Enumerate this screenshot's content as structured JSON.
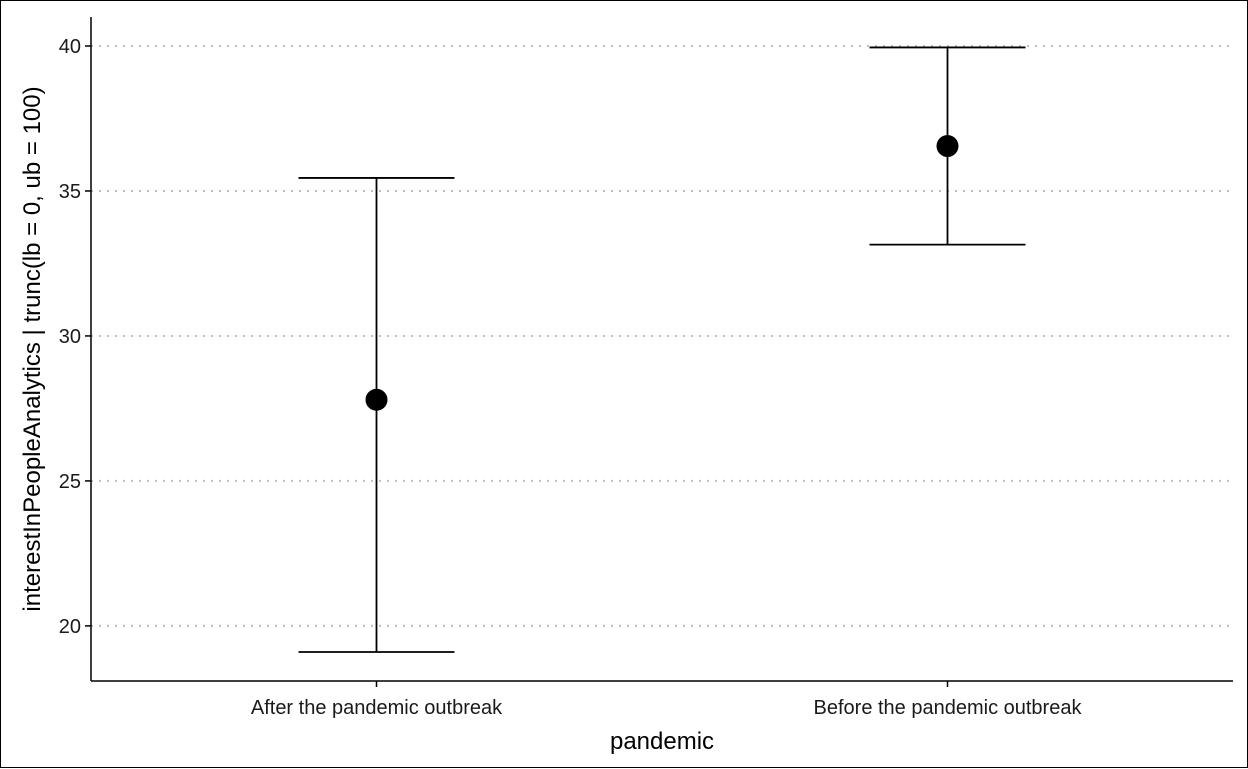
{
  "chart_data": {
    "type": "scatter",
    "subtype": "point with error bars",
    "title": "",
    "xlabel": "pandemic",
    "ylabel": "interestInPeopleAnalytics | trunc(lb = 0, ub = 100)",
    "categories": [
      "After the pandemic outbreak",
      "Before the pandemic outbreak"
    ],
    "series": [
      {
        "estimates": [
          27.8,
          36.55
        ],
        "lower": [
          19.1,
          33.15
        ],
        "upper": [
          35.45,
          39.95
        ]
      }
    ],
    "ylim": [
      18.1,
      41
    ],
    "yticks": [
      20,
      25,
      30,
      35,
      40
    ],
    "ytick_labels": [
      "20",
      "25",
      "30",
      "35",
      "40"
    ],
    "grid": "horizontal major, dotted",
    "legend": "none",
    "colors": {
      "point": "#000000",
      "errorbar": "#000000",
      "grid": "#bebebe",
      "axis": "#000000"
    }
  }
}
